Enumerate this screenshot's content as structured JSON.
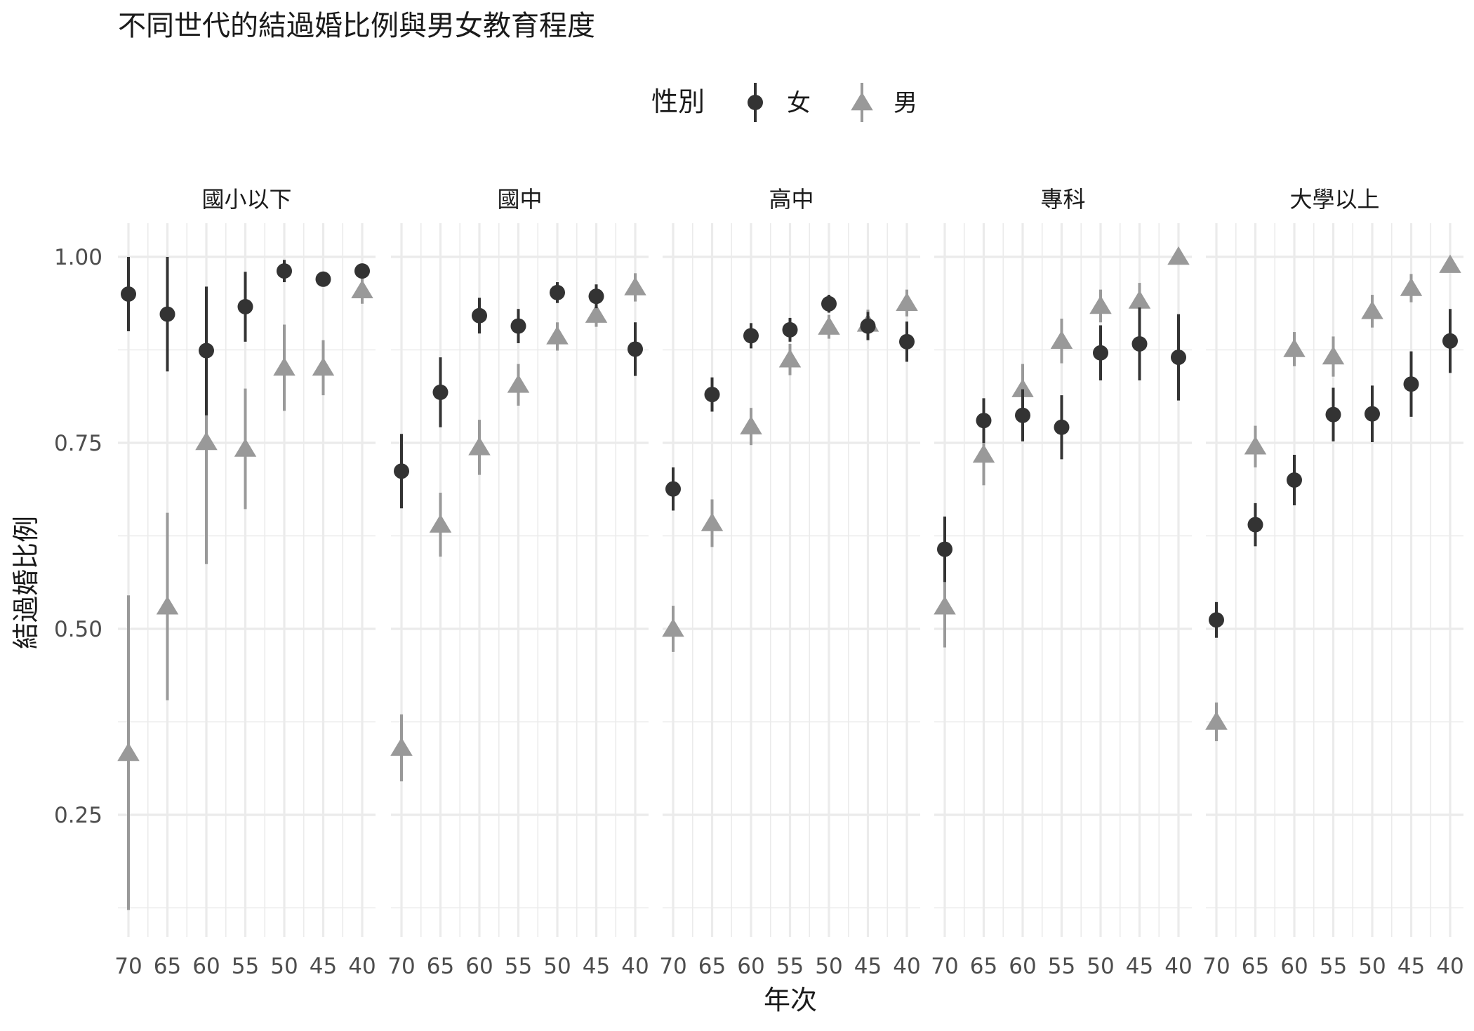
{
  "chart_data": {
    "type": "scatter",
    "title": "不同世代的結過婚比例與男女教育程度",
    "xlabel": "年次",
    "ylabel": "結過婚比例",
    "categories": [
      "70",
      "65",
      "60",
      "55",
      "50",
      "45",
      "40"
    ],
    "yticks": [
      "0.25",
      "0.50",
      "0.75",
      "1.00"
    ],
    "ylim": [
      0.1,
      1.05
    ],
    "grid": true,
    "legend": {
      "title": "性別",
      "placement": "top",
      "entries": [
        {
          "label": "女",
          "shape": "circle",
          "color": "#333333"
        },
        {
          "label": "男",
          "shape": "triangle",
          "color": "#999999"
        }
      ]
    },
    "facets": [
      {
        "label": "國小以下",
        "series": [
          {
            "sex": "女",
            "values": [
              0.95,
              0.923,
              0.874,
              0.933,
              0.981,
              0.97,
              0.981
            ],
            "low": [
              0.9,
              0.846,
              0.787,
              0.886,
              0.966,
              0.962,
              0.975
            ],
            "high": [
              1.0,
              1.0,
              0.96,
              0.98,
              0.996,
              0.978,
              0.987
            ]
          },
          {
            "sex": "男",
            "values": [
              0.333,
              0.53,
              0.751,
              0.742,
              0.851,
              0.851,
              0.955
            ],
            "low": [
              0.122,
              0.404,
              0.587,
              0.661,
              0.793,
              0.814,
              0.937
            ],
            "high": [
              0.545,
              0.656,
              0.915,
              0.823,
              0.909,
              0.888,
              0.973
            ]
          }
        ]
      },
      {
        "label": "國中",
        "series": [
          {
            "sex": "女",
            "values": [
              0.712,
              0.818,
              0.921,
              0.907,
              0.952,
              0.947,
              0.876
            ],
            "low": [
              0.662,
              0.771,
              0.897,
              0.884,
              0.938,
              0.931,
              0.84
            ],
            "high": [
              0.762,
              0.865,
              0.945,
              0.93,
              0.966,
              0.963,
              0.912
            ]
          },
          {
            "sex": "男",
            "values": [
              0.34,
              0.64,
              0.744,
              0.828,
              0.893,
              0.922,
              0.959
            ],
            "low": [
              0.295,
              0.597,
              0.707,
              0.8,
              0.874,
              0.906,
              0.94
            ],
            "high": [
              0.385,
              0.683,
              0.781,
              0.856,
              0.912,
              0.938,
              0.978
            ]
          }
        ]
      },
      {
        "label": "高中",
        "series": [
          {
            "sex": "女",
            "values": [
              0.688,
              0.815,
              0.894,
              0.902,
              0.937,
              0.907,
              0.886
            ],
            "low": [
              0.659,
              0.792,
              0.877,
              0.886,
              0.925,
              0.888,
              0.859
            ],
            "high": [
              0.717,
              0.838,
              0.911,
              0.918,
              0.949,
              0.926,
              0.913
            ]
          },
          {
            "sex": "男",
            "values": [
              0.5,
              0.642,
              0.772,
              0.862,
              0.906,
              0.91,
              0.938
            ],
            "low": [
              0.469,
              0.61,
              0.747,
              0.841,
              0.89,
              0.891,
              0.92
            ],
            "high": [
              0.531,
              0.674,
              0.797,
              0.883,
              0.922,
              0.929,
              0.956
            ]
          }
        ]
      },
      {
        "label": "專科",
        "series": [
          {
            "sex": "女",
            "values": [
              0.607,
              0.78,
              0.787,
              0.771,
              0.871,
              0.883,
              0.865
            ],
            "low": [
              0.563,
              0.75,
              0.752,
              0.728,
              0.834,
              0.834,
              0.807
            ],
            "high": [
              0.651,
              0.81,
              0.822,
              0.814,
              0.908,
              0.932,
              0.923
            ]
          },
          {
            "sex": "男",
            "values": [
              0.53,
              0.734,
              0.822,
              0.887,
              0.934,
              0.941,
              1.0
            ],
            "low": [
              0.475,
              0.693,
              0.788,
              0.857,
              0.912,
              0.917,
              1.0
            ],
            "high": [
              0.585,
              0.775,
              0.856,
              0.917,
              0.956,
              0.965,
              1.0
            ]
          }
        ]
      },
      {
        "label": "大學以上",
        "series": [
          {
            "sex": "女",
            "values": [
              0.512,
              0.64,
              0.7,
              0.788,
              0.789,
              0.829,
              0.887
            ],
            "low": [
              0.488,
              0.611,
              0.666,
              0.752,
              0.751,
              0.785,
              0.844
            ],
            "high": [
              0.536,
              0.669,
              0.734,
              0.824,
              0.827,
              0.873,
              0.93
            ]
          },
          {
            "sex": "男",
            "values": [
              0.375,
              0.745,
              0.876,
              0.866,
              0.927,
              0.958,
              0.989
            ],
            "low": [
              0.349,
              0.717,
              0.853,
              0.839,
              0.905,
              0.939,
              0.98
            ],
            "high": [
              0.401,
              0.773,
              0.899,
              0.893,
              0.949,
              0.977,
              0.998
            ]
          }
        ]
      }
    ]
  }
}
